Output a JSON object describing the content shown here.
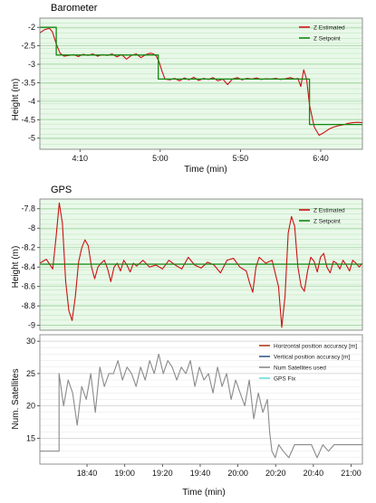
{
  "chart_data": [
    {
      "type": "line",
      "title": "Barometer",
      "xlabel": "Time (min)",
      "ylabel": "Height (m)",
      "xlim": [
        3.75,
        7.1
      ],
      "ylim": [
        -5.3,
        -1.75
      ],
      "x_ticks": [
        {
          "value": 4.1667,
          "label": "4:10"
        },
        {
          "value": 5.0,
          "label": "5:00"
        },
        {
          "value": 5.8333,
          "label": "5:50"
        },
        {
          "value": 6.6667,
          "label": "6:40"
        }
      ],
      "y_ticks": [
        {
          "value": -2,
          "label": "-2"
        },
        {
          "value": -2.5,
          "label": "-2.5"
        },
        {
          "value": -3,
          "label": "-3"
        },
        {
          "value": -3.5,
          "label": "-3.5"
        },
        {
          "value": -4,
          "label": "-4"
        },
        {
          "value": -4.5,
          "label": "-4.5"
        },
        {
          "value": -5,
          "label": "-5"
        }
      ],
      "grid": true,
      "background": "#e9f8e9",
      "legend_position": "top-right",
      "series": [
        {
          "name": "Z Estimated",
          "color": "#cc1111",
          "x": [
            3.75,
            3.8,
            3.85,
            3.88,
            3.92,
            3.96,
            4.0,
            4.05,
            4.1,
            4.15,
            4.2,
            4.25,
            4.3,
            4.35,
            4.4,
            4.45,
            4.5,
            4.55,
            4.6,
            4.65,
            4.7,
            4.75,
            4.8,
            4.85,
            4.9,
            4.93,
            4.96,
            4.99,
            5.02,
            5.05,
            5.1,
            5.15,
            5.2,
            5.25,
            5.3,
            5.35,
            5.4,
            5.45,
            5.5,
            5.55,
            5.6,
            5.65,
            5.7,
            5.75,
            5.8,
            5.85,
            5.9,
            5.95,
            6.0,
            6.05,
            6.1,
            6.15,
            6.2,
            6.25,
            6.3,
            6.35,
            6.4,
            6.43,
            6.46,
            6.49,
            6.52,
            6.55,
            6.6,
            6.65,
            6.7,
            6.75,
            6.8,
            6.85,
            6.9,
            6.95,
            7.0,
            7.05,
            7.1
          ],
          "y": [
            -2.15,
            -2.06,
            -2.03,
            -2.12,
            -2.45,
            -2.7,
            -2.78,
            -2.76,
            -2.74,
            -2.79,
            -2.73,
            -2.76,
            -2.72,
            -2.78,
            -2.74,
            -2.76,
            -2.72,
            -2.8,
            -2.74,
            -2.86,
            -2.76,
            -2.72,
            -2.82,
            -2.74,
            -2.7,
            -2.72,
            -2.78,
            -2.95,
            -3.2,
            -3.4,
            -3.42,
            -3.38,
            -3.45,
            -3.37,
            -3.42,
            -3.35,
            -3.44,
            -3.38,
            -3.41,
            -3.36,
            -3.45,
            -3.4,
            -3.55,
            -3.4,
            -3.36,
            -3.42,
            -3.38,
            -3.4,
            -3.37,
            -3.41,
            -3.39,
            -3.4,
            -3.38,
            -3.41,
            -3.39,
            -3.36,
            -3.4,
            -3.38,
            -3.6,
            -3.15,
            -3.4,
            -4.1,
            -4.7,
            -4.92,
            -4.85,
            -4.76,
            -4.7,
            -4.66,
            -4.64,
            -4.6,
            -4.58,
            -4.57,
            -4.58
          ]
        },
        {
          "name": "Z Setpoint",
          "color": "#118811",
          "x": [
            3.75,
            3.92,
            3.92,
            4.98,
            4.98,
            6.55,
            6.55,
            7.1
          ],
          "y": [
            -2.0,
            -2.0,
            -2.75,
            -2.75,
            -3.4,
            -3.4,
            -4.63,
            -4.63
          ]
        }
      ]
    },
    {
      "type": "line",
      "title": "GPS",
      "xlabel": "",
      "ylabel": "Height (m)",
      "xlim": [
        0,
        100
      ],
      "ylim": [
        -9.05,
        -7.7
      ],
      "y_ticks": [
        {
          "value": -7.8,
          "label": "-7.8"
        },
        {
          "value": -8,
          "label": "-8"
        },
        {
          "value": -8.2,
          "label": "-8.2"
        },
        {
          "value": -8.4,
          "label": "-8.4"
        },
        {
          "value": -8.6,
          "label": "-8.6"
        },
        {
          "value": -8.8,
          "label": "-8.8"
        },
        {
          "value": -9,
          "label": "-9"
        }
      ],
      "grid": true,
      "background": "#e9f8e9",
      "legend_position": "top-right",
      "series": [
        {
          "name": "Z Estimated",
          "color": "#cc1111",
          "x": [
            0,
            2,
            4,
            5,
            6,
            7,
            8,
            9,
            10,
            11,
            12,
            13,
            14,
            15,
            16,
            17,
            18,
            19,
            20,
            21,
            22,
            23,
            24,
            25,
            26,
            27,
            28,
            29,
            30,
            32,
            34,
            36,
            38,
            40,
            42,
            44,
            46,
            48,
            50,
            52,
            54,
            56,
            58,
            60,
            62,
            64,
            65,
            66,
            67,
            68,
            70,
            72,
            74,
            75,
            76,
            77,
            78,
            79,
            80,
            81,
            82,
            83,
            84,
            85,
            86,
            87,
            88,
            89,
            90,
            91,
            92,
            93,
            94,
            95,
            96,
            97,
            98,
            99,
            100
          ],
          "y": [
            -8.36,
            -8.32,
            -8.42,
            -8.1,
            -7.74,
            -7.95,
            -8.55,
            -8.85,
            -8.95,
            -8.7,
            -8.35,
            -8.2,
            -8.12,
            -8.18,
            -8.4,
            -8.52,
            -8.4,
            -8.36,
            -8.33,
            -8.42,
            -8.55,
            -8.4,
            -8.36,
            -8.44,
            -8.33,
            -8.38,
            -8.45,
            -8.36,
            -8.39,
            -8.33,
            -8.4,
            -8.38,
            -8.42,
            -8.33,
            -8.38,
            -8.42,
            -8.3,
            -8.38,
            -8.41,
            -8.35,
            -8.38,
            -8.46,
            -8.33,
            -8.31,
            -8.4,
            -8.44,
            -8.56,
            -8.66,
            -8.4,
            -8.3,
            -8.36,
            -8.33,
            -8.6,
            -9.02,
            -8.7,
            -8.05,
            -7.88,
            -7.98,
            -8.4,
            -8.6,
            -8.65,
            -8.44,
            -8.3,
            -8.34,
            -8.45,
            -8.3,
            -8.26,
            -8.4,
            -8.46,
            -8.34,
            -8.36,
            -8.42,
            -8.33,
            -8.38,
            -8.44,
            -8.33,
            -8.36,
            -8.4,
            -8.36
          ]
        },
        {
          "name": "Z Setpoint",
          "color": "#118811",
          "x": [
            0,
            100
          ],
          "y": [
            -8.37,
            -8.37
          ]
        }
      ]
    },
    {
      "type": "line",
      "title": "",
      "xlabel": "Time (min)",
      "ylabel": "Num. Satellites",
      "xlim": [
        18.25,
        21.1
      ],
      "ylim": [
        11,
        31
      ],
      "x_ticks": [
        {
          "value": 18.6667,
          "label": "18:40"
        },
        {
          "value": 19.0,
          "label": "19:00"
        },
        {
          "value": 19.3333,
          "label": "19:20"
        },
        {
          "value": 19.6667,
          "label": "19:40"
        },
        {
          "value": 20.0,
          "label": "20:00"
        },
        {
          "value": 20.3333,
          "label": "20:20"
        },
        {
          "value": 20.6667,
          "label": "20:40"
        },
        {
          "value": 21.0,
          "label": "21:00"
        }
      ],
      "y_ticks": [
        {
          "value": 15,
          "label": "15"
        },
        {
          "value": 20,
          "label": "20"
        },
        {
          "value": 25,
          "label": "25"
        },
        {
          "value": 30,
          "label": "30"
        }
      ],
      "grid": true,
      "background": "#ffffff",
      "legend_position": "top-right",
      "legend_only": [
        {
          "name": "Horizontal position accuracy [m]",
          "color": "#b03a1a"
        },
        {
          "name": "Vertical position accuracy [m]",
          "color": "#3a5a8a"
        },
        {
          "name": "GPS Fix",
          "color": "#66dddd"
        }
      ],
      "series": [
        {
          "name": "Num Satellites used",
          "color": "#8a8a8a",
          "x": [
            18.25,
            18.42,
            18.42,
            18.46,
            18.5,
            18.54,
            18.58,
            18.62,
            18.66,
            18.7,
            18.74,
            18.78,
            18.82,
            18.86,
            18.9,
            18.94,
            18.98,
            19.02,
            19.06,
            19.1,
            19.14,
            19.18,
            19.22,
            19.26,
            19.3,
            19.34,
            19.38,
            19.42,
            19.46,
            19.5,
            19.54,
            19.58,
            19.62,
            19.66,
            19.7,
            19.74,
            19.78,
            19.82,
            19.86,
            19.9,
            19.94,
            19.98,
            20.02,
            20.06,
            20.1,
            20.14,
            20.18,
            20.22,
            20.26,
            20.28,
            20.3,
            20.33,
            20.36,
            20.4,
            20.45,
            20.5,
            20.55,
            20.6,
            20.65,
            20.7,
            20.75,
            20.8,
            20.85,
            20.9,
            20.95,
            21.0,
            21.1
          ],
          "y": [
            13,
            13,
            25,
            20,
            24,
            22,
            17,
            23,
            21,
            25,
            19,
            26,
            23,
            25,
            25,
            27,
            24,
            26,
            25,
            23,
            26,
            24,
            27,
            25,
            28,
            25,
            27,
            26,
            24,
            26,
            25,
            27,
            23,
            26,
            24,
            25,
            22,
            26,
            23,
            25,
            21,
            24,
            22,
            20,
            24,
            18,
            22,
            19,
            21,
            16,
            13,
            12,
            14,
            13,
            12,
            14,
            14,
            14,
            14,
            12,
            14,
            13,
            14,
            14,
            14,
            14,
            14
          ]
        }
      ]
    }
  ]
}
